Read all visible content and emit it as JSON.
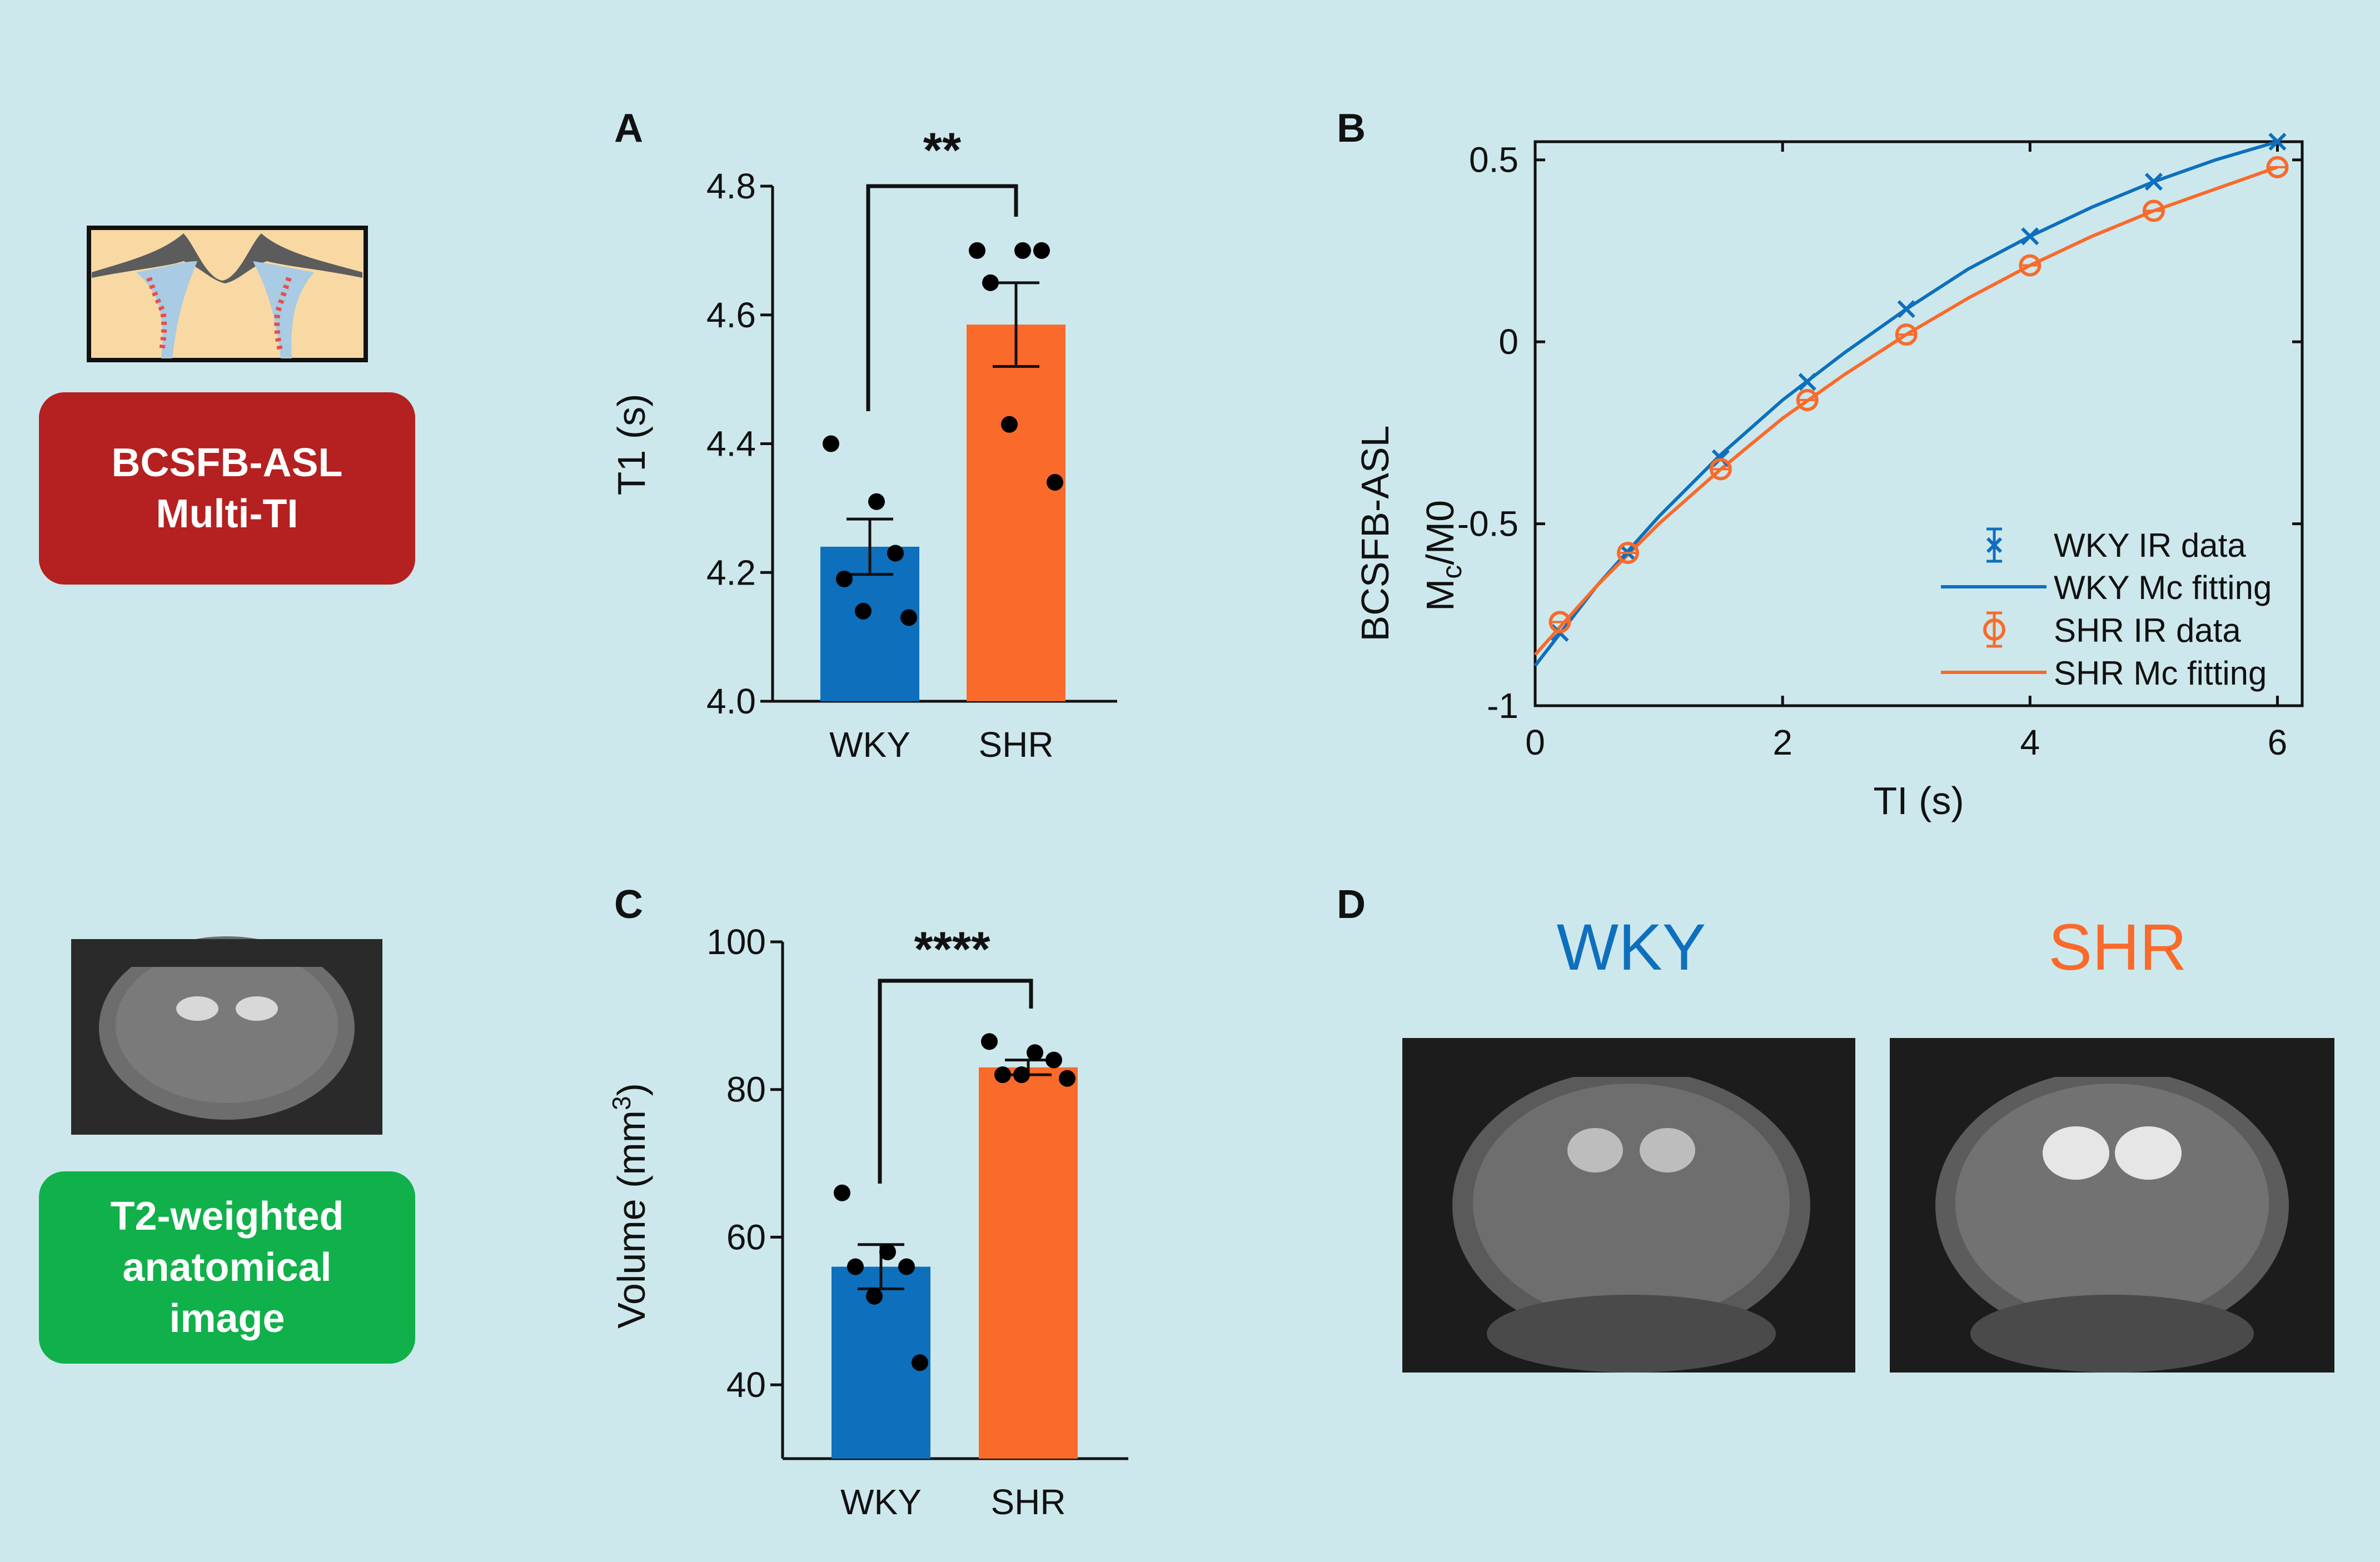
{
  "colors": {
    "background": "#cde8ec",
    "wky": "#0e6fbd",
    "shr": "#f96a2b",
    "asl_badge": "#b52020",
    "t2_badge": "#10b04a"
  },
  "methods": {
    "asl": {
      "line1": "BCSFB-ASL",
      "line2": "Multi-TI",
      "icon": "brain-ventricle-schematic-icon"
    },
    "t2": {
      "line1": "T2-weighted",
      "line2": "anatomical",
      "line3": "image",
      "icon": "brain-mri-thumbnail-icon"
    }
  },
  "panel_d": {
    "letter": "D",
    "wky_title": "WKY",
    "shr_title": "SHR"
  },
  "chart_data": [
    {
      "panel": "A",
      "type": "bar",
      "categories": [
        "WKY",
        "SHR"
      ],
      "values": [
        4.24,
        4.585
      ],
      "sem": [
        0.043,
        0.065
      ],
      "points": [
        [
          4.4,
          4.31,
          4.23,
          4.19,
          4.14,
          4.13
        ],
        [
          4.7,
          4.7,
          4.7,
          4.65,
          4.43,
          4.34
        ]
      ],
      "ylabel": "T1 (s)",
      "ylim": [
        4.0,
        4.8
      ],
      "yticks": [
        "4.0",
        "4.2",
        "4.4",
        "4.6",
        "4.8"
      ],
      "significance": "**"
    },
    {
      "panel": "B",
      "type": "line",
      "xlabel": "TI (s)",
      "ylabel_line1": "BCSFB-ASL",
      "ylabel_line2": "Mc/M0",
      "xlim": [
        0,
        6.2
      ],
      "ylim": [
        -1,
        0.55
      ],
      "xticks": [
        "0",
        "2",
        "4",
        "6"
      ],
      "yticks": [
        "-1",
        "-0.5",
        "0",
        "0.5"
      ],
      "legend_position": "bottom-right",
      "legend": [
        "WKY IR data",
        "WKY Mc fitting",
        "SHR IR data",
        "SHR Mc fitting"
      ],
      "series": [
        {
          "name": "WKY IR data",
          "marker": "x",
          "x": [
            0.2,
            0.75,
            1.5,
            2.2,
            3.0,
            4.0,
            5.0,
            6.0
          ],
          "y": [
            -0.8,
            -0.58,
            -0.32,
            -0.11,
            0.09,
            0.29,
            0.44,
            0.55
          ]
        },
        {
          "name": "WKY Mc fitting",
          "line": true,
          "x": [
            0.0,
            0.5,
            1.0,
            1.5,
            2.0,
            2.5,
            3.0,
            3.5,
            4.0,
            4.5,
            5.0,
            5.5,
            6.0
          ],
          "y": [
            -0.89,
            -0.67,
            -0.48,
            -0.31,
            -0.16,
            -0.03,
            0.09,
            0.2,
            0.29,
            0.37,
            0.44,
            0.5,
            0.55
          ]
        },
        {
          "name": "SHR IR data",
          "marker": "o",
          "x": [
            0.2,
            0.75,
            1.5,
            2.2,
            3.0,
            4.0,
            5.0,
            6.0
          ],
          "y": [
            -0.77,
            -0.58,
            -0.35,
            -0.16,
            0.02,
            0.21,
            0.36,
            0.48
          ]
        },
        {
          "name": "SHR Mc fitting",
          "line": true,
          "x": [
            0.0,
            0.5,
            1.0,
            1.5,
            2.0,
            2.5,
            3.0,
            3.5,
            4.0,
            4.5,
            5.0,
            5.5,
            6.0
          ],
          "y": [
            -0.86,
            -0.67,
            -0.5,
            -0.35,
            -0.21,
            -0.09,
            0.02,
            0.12,
            0.21,
            0.29,
            0.36,
            0.42,
            0.48
          ]
        }
      ]
    },
    {
      "panel": "C",
      "type": "bar",
      "categories": [
        "WKY",
        "SHR"
      ],
      "values": [
        56,
        83
      ],
      "sem": [
        3,
        1
      ],
      "points": [
        [
          66,
          58,
          56,
          56,
          52,
          43
        ],
        [
          86.5,
          85,
          84,
          82,
          82,
          81.5
        ]
      ],
      "ylabel": "Volume (mm",
      "ylabel_sup": "3",
      "ylabel_close": ")",
      "ylim": [
        30,
        100
      ],
      "yticks": [
        "40",
        "60",
        "80",
        "100"
      ],
      "significance": "****"
    }
  ]
}
